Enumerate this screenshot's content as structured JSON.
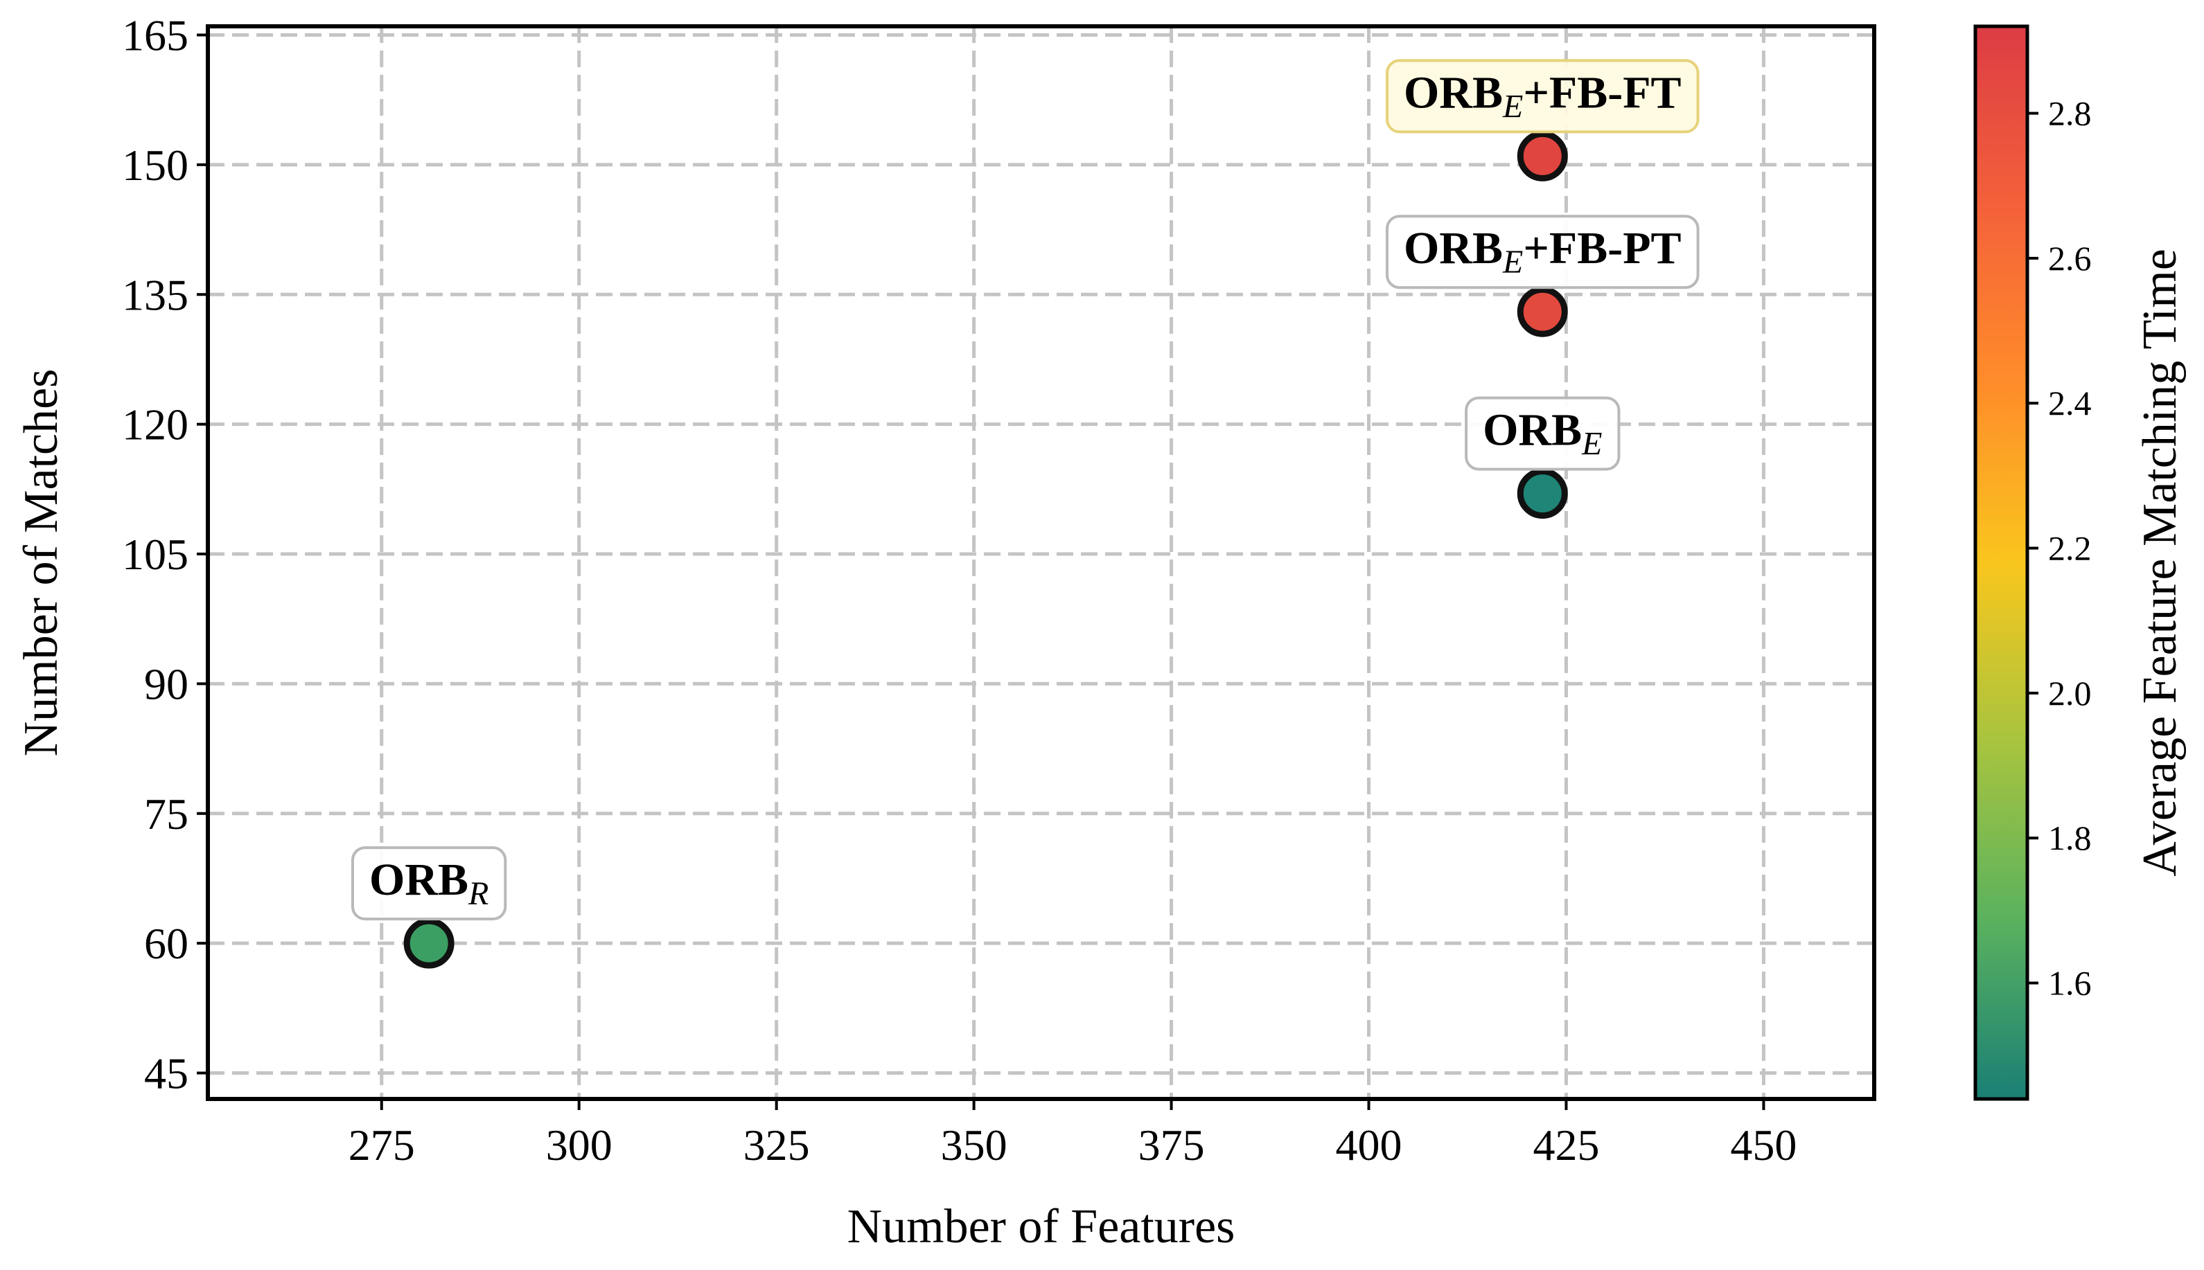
{
  "chart_data": {
    "type": "scatter",
    "xlabel": "Number of Features",
    "ylabel": "Number of Matches",
    "xlim": [
      253,
      464
    ],
    "ylim": [
      42,
      166
    ],
    "xticks": [
      275,
      300,
      325,
      350,
      375,
      400,
      425,
      450
    ],
    "yticks": [
      45,
      60,
      75,
      90,
      105,
      120,
      135,
      150,
      165
    ],
    "grid": true,
    "colorbar": {
      "label": "Average Feature Matching Time",
      "range": [
        1.44,
        2.92
      ],
      "ticks": [
        1.6,
        1.8,
        2.0,
        2.2,
        2.4,
        2.6,
        2.8
      ],
      "colors": [
        "#1a7f75",
        "#5ab25e",
        "#a8c43e",
        "#f9c61d",
        "#ff8c2a",
        "#f4613a",
        "#dc3c44"
      ]
    },
    "points": [
      {
        "name": "ORB",
        "subscript": "R",
        "suffix": "",
        "x": 281,
        "y": 60,
        "time": 1.72,
        "color": "#3b9e63",
        "highlight": false
      },
      {
        "name": "ORB",
        "subscript": "E",
        "suffix": "",
        "x": 422,
        "y": 112,
        "time": 1.52,
        "color": "#1f8576",
        "highlight": false
      },
      {
        "name": "ORB",
        "subscript": "E",
        "suffix": "+FB-PT",
        "x": 422,
        "y": 133,
        "time": 2.78,
        "color": "#e24a3e",
        "highlight": false
      },
      {
        "name": "ORB",
        "subscript": "E",
        "suffix": "+FB-FT",
        "x": 422,
        "y": 151,
        "time": 2.82,
        "color": "#e0453f",
        "highlight": true
      }
    ]
  }
}
